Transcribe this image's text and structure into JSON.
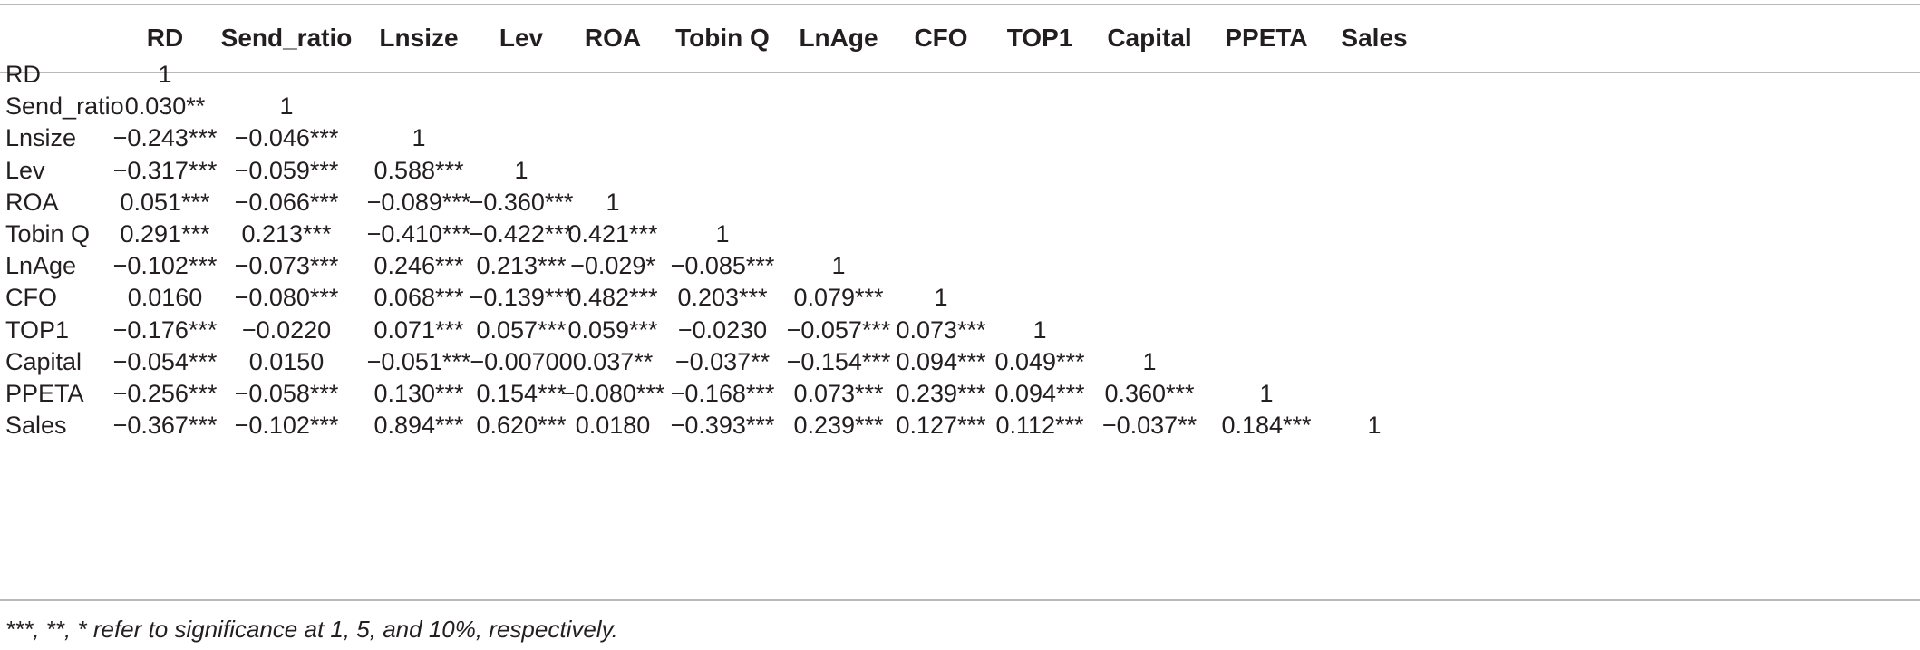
{
  "columns": [
    "RD",
    "Send_ratio",
    "Lnsize",
    "Lev",
    "ROA",
    "Tobin Q",
    "LnAge",
    "CFO",
    "TOP1",
    "Capital",
    "PPETA",
    "Sales"
  ],
  "rows": [
    {
      "label": "RD",
      "values": [
        "1"
      ]
    },
    {
      "label": "Send_ratio",
      "values": [
        "0.030**",
        "1"
      ]
    },
    {
      "label": "Lnsize",
      "values": [
        "−0.243***",
        "−0.046***",
        "1"
      ]
    },
    {
      "label": "Lev",
      "values": [
        "−0.317***",
        "−0.059***",
        "0.588***",
        "1"
      ]
    },
    {
      "label": "ROA",
      "values": [
        "0.051***",
        "−0.066***",
        "−0.089***",
        "−0.360***",
        "1"
      ]
    },
    {
      "label": "Tobin Q",
      "values": [
        "0.291***",
        "0.213***",
        "−0.410***",
        "−0.422***",
        "0.421***",
        "1"
      ]
    },
    {
      "label": "LnAge",
      "values": [
        "−0.102***",
        "−0.073***",
        "0.246***",
        "0.213***",
        "−0.029*",
        "−0.085***",
        "1"
      ]
    },
    {
      "label": "CFO",
      "values": [
        "0.0160",
        "−0.080***",
        "0.068***",
        "−0.139***",
        "0.482***",
        "0.203***",
        "0.079***",
        "1"
      ]
    },
    {
      "label": "TOP1",
      "values": [
        "−0.176***",
        "−0.0220",
        "0.071***",
        "0.057***",
        "0.059***",
        "−0.0230",
        "−0.057***",
        "0.073***",
        "1"
      ]
    },
    {
      "label": "Capital",
      "values": [
        "−0.054***",
        "0.0150",
        "−0.051***",
        "−0.00700",
        "0.037**",
        "−0.037**",
        "−0.154***",
        "0.094***",
        "0.049***",
        "1"
      ]
    },
    {
      "label": "PPETA",
      "values": [
        "−0.256***",
        "−0.058***",
        "0.130***",
        "0.154***",
        "−0.080***",
        "−0.168***",
        "0.073***",
        "0.239***",
        "0.094***",
        "0.360***",
        "1"
      ]
    },
    {
      "label": "Sales",
      "values": [
        "−0.367***",
        "−0.102***",
        "0.894***",
        "0.620***",
        "0.0180",
        "−0.393***",
        "0.239***",
        "0.127***",
        "0.112***",
        "−0.037**",
        "0.184***",
        "1"
      ]
    }
  ],
  "footnote": "***, **, * refer to significance at 1, 5, and 10%, respectively."
}
